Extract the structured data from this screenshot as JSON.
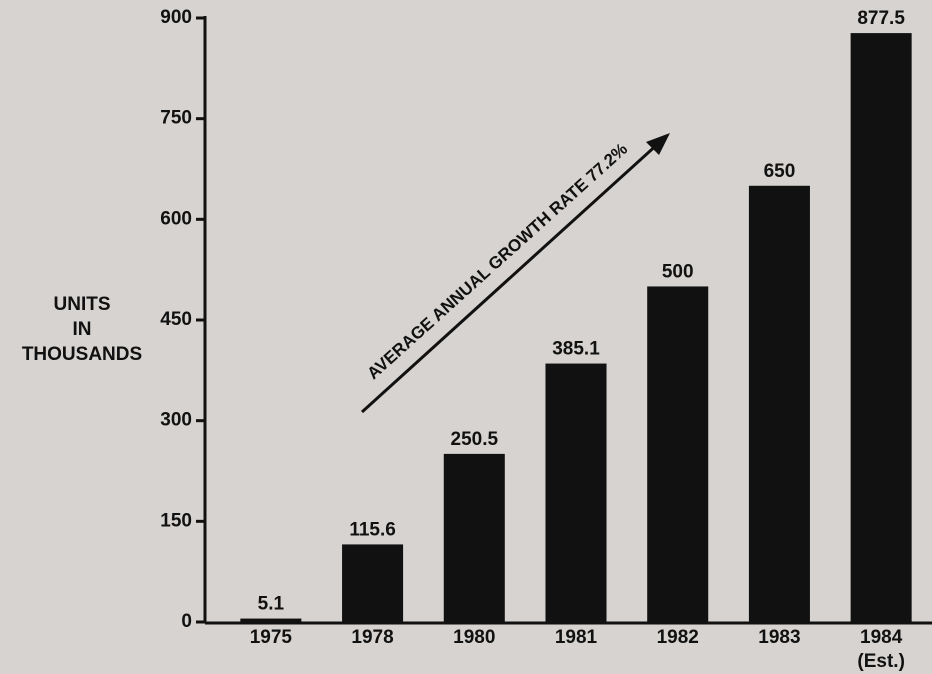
{
  "chart_data": {
    "type": "bar",
    "y_label": [
      "UNITS",
      "IN",
      "THOUSANDS"
    ],
    "categories": [
      "1975",
      "1978",
      "1980",
      "1981",
      "1982",
      "1983",
      "1984"
    ],
    "values": [
      5.1,
      115.6,
      250.5,
      385.1,
      500,
      650,
      877.5
    ],
    "color": "#111111",
    "ylim": [
      0,
      900
    ],
    "yticks": [
      0,
      150,
      300,
      450,
      600,
      750,
      900
    ],
    "grid": false,
    "annotations": [
      "AVERAGE ANNUAL GROWTH RATE 77.2%",
      "(Est.)"
    ]
  }
}
